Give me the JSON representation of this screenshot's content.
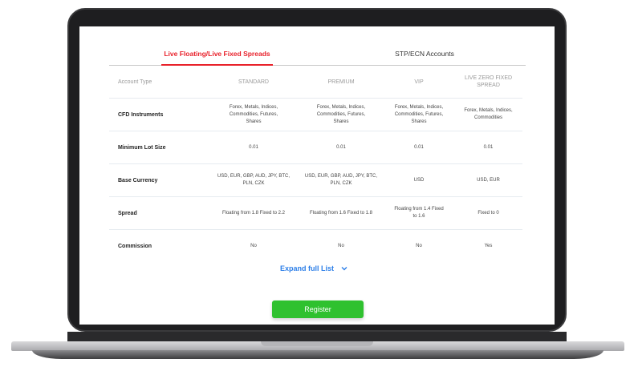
{
  "tabs": [
    {
      "label": "Live Floating/Live Fixed Spreads",
      "active": true
    },
    {
      "label": "STP/ECN  Accounts",
      "active": false
    }
  ],
  "table": {
    "headers": [
      "Account Type",
      "STANDARD",
      "PREMIUM",
      "VIP",
      "LIVE ZERO FIXED SPREAD"
    ],
    "rows": [
      {
        "label": "CFD Instruments",
        "values": [
          "Forex, Metals, Indices, Commodities, Futures, Shares",
          "Forex, Metals, Indices, Commodities, Futures, Shares",
          "Forex, Metals, Indices, Commodities, Futures, Shares",
          "Forex, Metals, Indices, Commodities"
        ]
      },
      {
        "label": "Minimum Lot Size",
        "values": [
          "0.01",
          "0.01",
          "0.01",
          "0.01"
        ]
      },
      {
        "label": "Base Currency",
        "values": [
          "USD, EUR, GBP, AUD, JPY, BTC, PLN, CZK",
          "USD, EUR, GBP, AUD, JPY, BTC, PLN, CZK",
          "USD",
          "USD, EUR"
        ]
      },
      {
        "label": "Spread",
        "values": [
          "Floating from 1.8 Fixed to 2.2",
          "Floating from 1.6 Fixed to 1.8",
          "Floating from 1.4 Fixed to 1.6",
          "Fixed to 0"
        ]
      },
      {
        "label": "Commission",
        "values": [
          "No",
          "No",
          "No",
          "Yes"
        ]
      }
    ]
  },
  "expand_label": "Expand full List",
  "expand_icon": "chevron-down-icon",
  "register_label": "Register",
  "colors": {
    "accent": "#e8202a",
    "link": "#2d7fe8",
    "button": "#2fc12f"
  }
}
